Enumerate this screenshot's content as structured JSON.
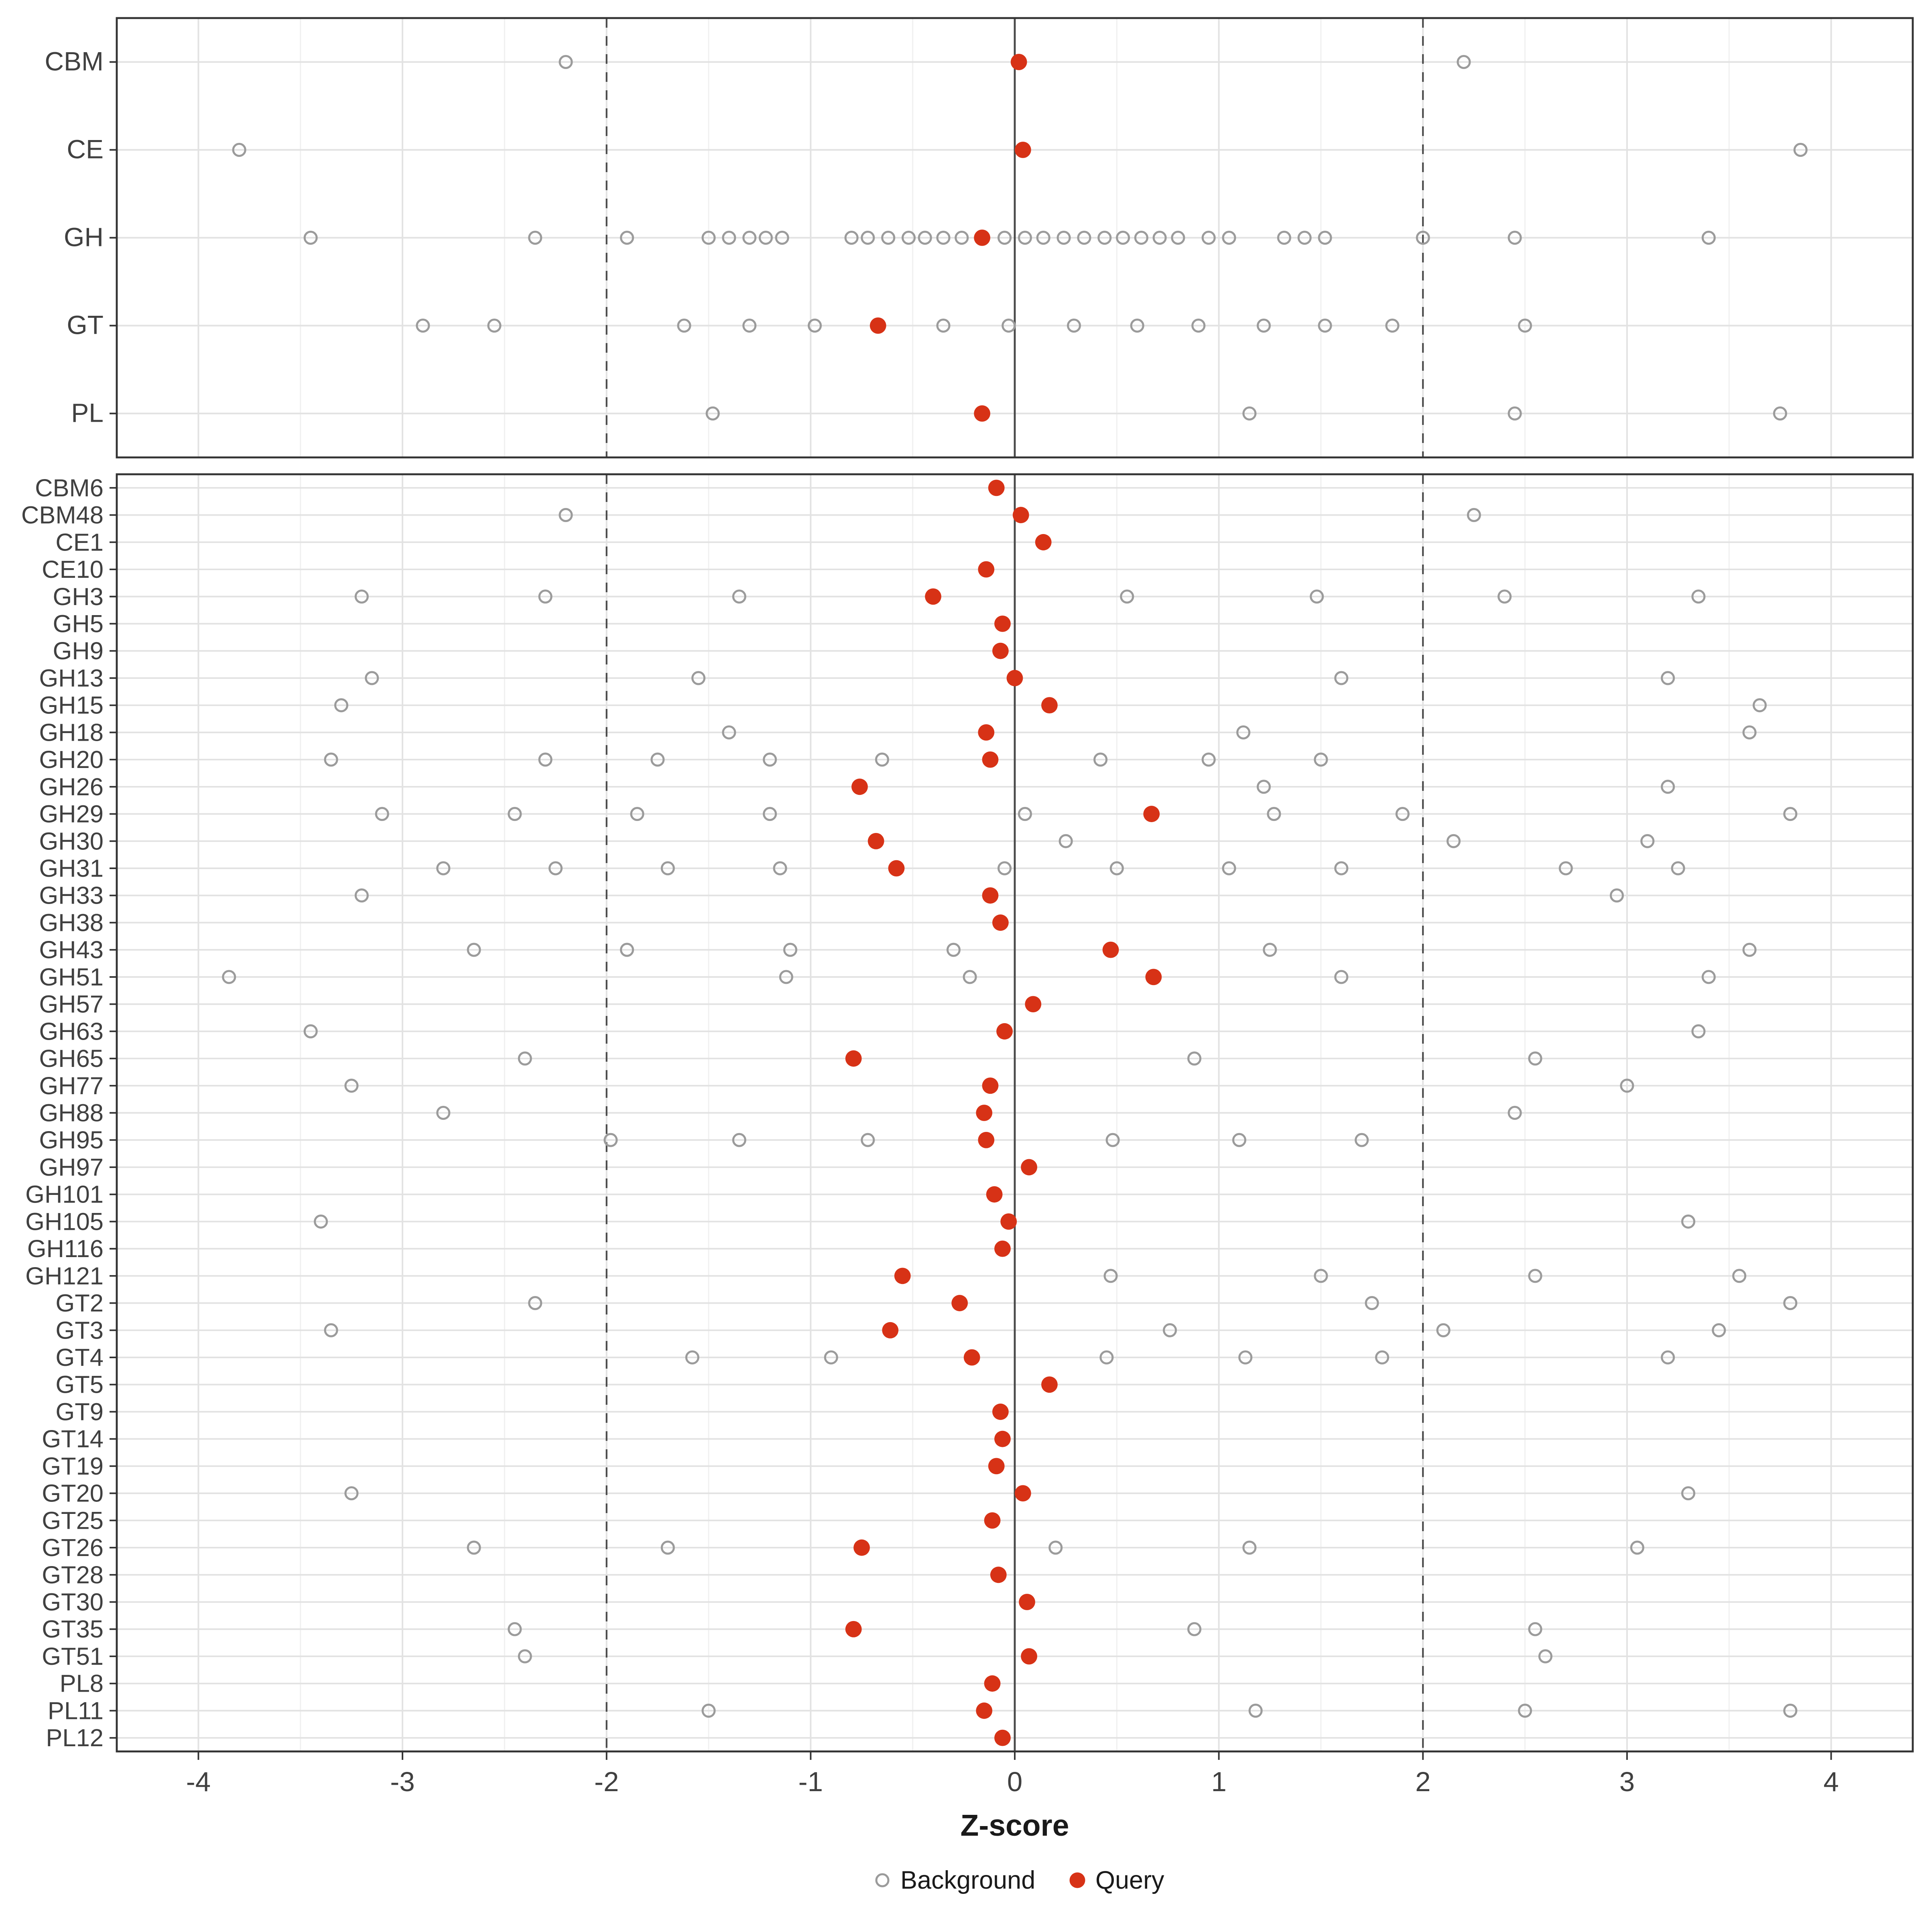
{
  "chart_data": {
    "type": "scatter",
    "title": "",
    "xlabel": "Z-score",
    "xlim": [
      -4.4,
      4.4
    ],
    "xticks": [
      -4,
      -3,
      -2,
      -1,
      0,
      1,
      2,
      3,
      4
    ],
    "grid": true,
    "reference_lines": {
      "dashed": [
        -2,
        2
      ],
      "solid": 0
    },
    "colors": {
      "background_marker": "#9b9b9b",
      "query_marker": "#d73216",
      "grid_major": "#e2e2e2",
      "grid_minor": "#f0f0f0",
      "panel_border": "#333333",
      "axis_text": "#404040",
      "reference_line": "#4a4a4a"
    },
    "legend": {
      "position": "bottom",
      "items": [
        {
          "label": "Background",
          "marker": "open-circle"
        },
        {
          "label": "Query",
          "marker": "filled-circle"
        }
      ]
    },
    "panels": [
      {
        "name": "family-summary",
        "rows": [
          {
            "label": "CBM",
            "query": 0.02,
            "background": [
              -2.2,
              2.2
            ]
          },
          {
            "label": "CE",
            "query": 0.04,
            "background": [
              -3.8,
              3.85
            ]
          },
          {
            "label": "GH",
            "query": -0.16,
            "background": [
              -3.45,
              -2.35,
              -1.9,
              -1.5,
              -1.4,
              -1.3,
              -1.22,
              -1.14,
              -0.8,
              -0.72,
              -0.62,
              -0.52,
              -0.44,
              -0.35,
              -0.26,
              -0.05,
              0.05,
              0.14,
              0.24,
              0.34,
              0.44,
              0.53,
              0.62,
              0.71,
              0.8,
              0.95,
              1.05,
              1.32,
              1.42,
              1.52,
              2.0,
              2.45,
              3.4
            ]
          },
          {
            "label": "GT",
            "query": -0.67,
            "background": [
              -2.9,
              -2.55,
              -1.62,
              -1.3,
              -0.98,
              -0.35,
              -0.03,
              0.29,
              0.6,
              0.9,
              1.22,
              1.52,
              1.85,
              2.5
            ]
          },
          {
            "label": "PL",
            "query": -0.16,
            "background": [
              -1.48,
              1.15,
              2.45,
              3.75
            ]
          }
        ]
      },
      {
        "name": "subfamily-detail",
        "rows": [
          {
            "label": "CBM6",
            "query": -0.09,
            "background": []
          },
          {
            "label": "CBM48",
            "query": 0.03,
            "background": [
              -2.2,
              2.25
            ]
          },
          {
            "label": "CE1",
            "query": 0.14,
            "background": []
          },
          {
            "label": "CE10",
            "query": -0.14,
            "background": []
          },
          {
            "label": "GH3",
            "query": -0.4,
            "background": [
              -3.2,
              -2.3,
              -1.35,
              0.55,
              1.48,
              2.4,
              3.35
            ]
          },
          {
            "label": "GH5",
            "query": -0.06,
            "background": []
          },
          {
            "label": "GH9",
            "query": -0.07,
            "background": []
          },
          {
            "label": "GH13",
            "query": 0.0,
            "background": [
              -3.15,
              -1.55,
              1.6,
              3.2
            ]
          },
          {
            "label": "GH15",
            "query": 0.17,
            "background": [
              -3.3,
              3.65
            ]
          },
          {
            "label": "GH18",
            "query": -0.14,
            "background": [
              -1.4,
              1.12,
              3.6
            ]
          },
          {
            "label": "GH20",
            "query": -0.12,
            "background": [
              -3.35,
              -2.3,
              -1.75,
              -1.2,
              -0.65,
              0.42,
              0.95,
              1.5
            ]
          },
          {
            "label": "GH26",
            "query": -0.76,
            "background": [
              1.22,
              3.2
            ]
          },
          {
            "label": "GH29",
            "query": 0.67,
            "background": [
              -3.1,
              -2.45,
              -1.85,
              -1.2,
              0.05,
              1.27,
              1.9,
              3.8
            ]
          },
          {
            "label": "GH30",
            "query": -0.68,
            "background": [
              0.25,
              2.15,
              3.1
            ]
          },
          {
            "label": "GH31",
            "query": -0.58,
            "background": [
              -2.8,
              -2.25,
              -1.7,
              -1.15,
              -0.05,
              0.5,
              1.05,
              1.6,
              2.7,
              3.25
            ]
          },
          {
            "label": "GH33",
            "query": -0.12,
            "background": [
              -3.2,
              2.95
            ]
          },
          {
            "label": "GH38",
            "query": -0.07,
            "background": []
          },
          {
            "label": "GH43",
            "query": 0.47,
            "background": [
              -2.65,
              -1.9,
              -1.1,
              -0.3,
              1.25,
              3.6
            ]
          },
          {
            "label": "GH51",
            "query": 0.68,
            "background": [
              -3.85,
              -1.12,
              -0.22,
              1.6,
              3.4
            ]
          },
          {
            "label": "GH57",
            "query": 0.09,
            "background": []
          },
          {
            "label": "GH63",
            "query": -0.05,
            "background": [
              -3.45,
              3.35
            ]
          },
          {
            "label": "GH65",
            "query": -0.79,
            "background": [
              -2.4,
              0.88,
              2.55
            ]
          },
          {
            "label": "GH77",
            "query": -0.12,
            "background": [
              -3.25,
              3.0
            ]
          },
          {
            "label": "GH88",
            "query": -0.15,
            "background": [
              -2.8,
              2.45
            ]
          },
          {
            "label": "GH95",
            "query": -0.14,
            "background": [
              -1.98,
              -1.35,
              -0.72,
              0.48,
              1.1,
              1.7
            ]
          },
          {
            "label": "GH97",
            "query": 0.07,
            "background": []
          },
          {
            "label": "GH101",
            "query": -0.1,
            "background": []
          },
          {
            "label": "GH105",
            "query": -0.03,
            "background": [
              -3.4,
              3.3
            ]
          },
          {
            "label": "GH116",
            "query": -0.06,
            "background": []
          },
          {
            "label": "GH121",
            "query": -0.55,
            "background": [
              0.47,
              1.5,
              2.55,
              3.55
            ]
          },
          {
            "label": "GT2",
            "query": -0.27,
            "background": [
              -2.35,
              1.75,
              3.8
            ]
          },
          {
            "label": "GT3",
            "query": -0.61,
            "background": [
              -3.35,
              0.76,
              2.1,
              3.45
            ]
          },
          {
            "label": "GT4",
            "query": -0.21,
            "background": [
              -1.58,
              -0.9,
              0.45,
              1.13,
              1.8,
              3.2
            ]
          },
          {
            "label": "GT5",
            "query": 0.17,
            "background": []
          },
          {
            "label": "GT9",
            "query": -0.07,
            "background": []
          },
          {
            "label": "GT14",
            "query": -0.06,
            "background": []
          },
          {
            "label": "GT19",
            "query": -0.09,
            "background": []
          },
          {
            "label": "GT20",
            "query": 0.04,
            "background": [
              -3.25,
              3.3
            ]
          },
          {
            "label": "GT25",
            "query": -0.11,
            "background": []
          },
          {
            "label": "GT26",
            "query": -0.75,
            "background": [
              -2.65,
              -1.7,
              0.2,
              1.15,
              3.05
            ]
          },
          {
            "label": "GT28",
            "query": -0.08,
            "background": []
          },
          {
            "label": "GT30",
            "query": 0.06,
            "background": []
          },
          {
            "label": "GT35",
            "query": -0.79,
            "background": [
              -2.45,
              0.88,
              2.55
            ]
          },
          {
            "label": "GT51",
            "query": 0.07,
            "background": [
              -2.4,
              2.6
            ]
          },
          {
            "label": "PL8",
            "query": -0.11,
            "background": []
          },
          {
            "label": "PL11",
            "query": -0.15,
            "background": [
              -1.5,
              1.18,
              2.5,
              3.8
            ]
          },
          {
            "label": "PL12",
            "query": -0.06,
            "background": []
          }
        ]
      }
    ]
  }
}
